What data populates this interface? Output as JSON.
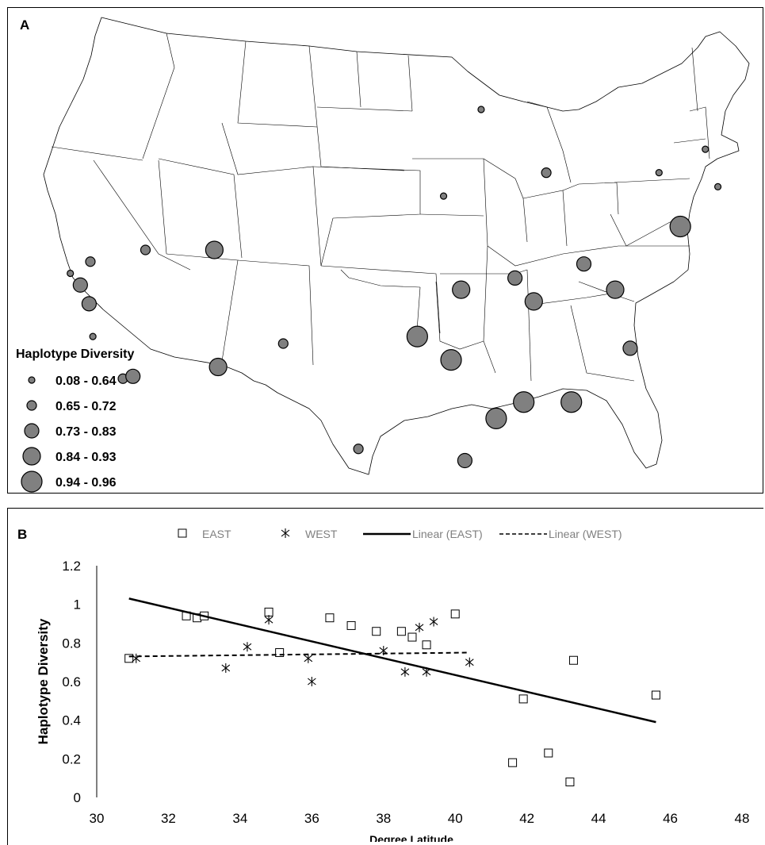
{
  "panel_a": {
    "letter": "A",
    "legend": {
      "title": "Haplotype Diversity",
      "classes": [
        {
          "label": "0.08 - 0.64",
          "size_rank": 1
        },
        {
          "label": "0.65 - 0.72",
          "size_rank": 2
        },
        {
          "label": "0.73 - 0.83",
          "size_rank": 3
        },
        {
          "label": "0.84 - 0.93",
          "size_rank": 4
        },
        {
          "label": "0.94 - 0.96",
          "size_rank": 5
        }
      ]
    },
    "symbol_fill": "#808080"
  },
  "chart_data": [
    {
      "type": "map",
      "map_extent": "contiguous United States",
      "legend_title": "Haplotype Diversity",
      "value_classes": [
        "0.08 - 0.64",
        "0.65 - 0.72",
        "0.73 - 0.83",
        "0.84 - 0.93",
        "0.94 - 0.96"
      ],
      "sites": [
        {
          "location": "northern California",
          "class": 1,
          "lat": 38.5,
          "lon": -123.0
        },
        {
          "location": "northern California",
          "class": 3,
          "lat": 38.0,
          "lon": -122.2
        },
        {
          "location": "northern California",
          "class": 2,
          "lat": 39.0,
          "lon": -121.4
        },
        {
          "location": "central California",
          "class": 3,
          "lat": 37.2,
          "lon": -121.5
        },
        {
          "location": "central California coast",
          "class": 1,
          "lat": 35.8,
          "lon": -121.2
        },
        {
          "location": "southern California",
          "class": 2,
          "lat": 34.0,
          "lon": -118.8
        },
        {
          "location": "southern California",
          "class": 3,
          "lat": 34.1,
          "lon": -118.0
        },
        {
          "location": "Nevada",
          "class": 2,
          "lat": 39.5,
          "lon": -117.0
        },
        {
          "location": "Utah",
          "class": 4,
          "lat": 39.5,
          "lon": -111.5
        },
        {
          "location": "Arizona",
          "class": 4,
          "lat": 34.5,
          "lon": -111.2
        },
        {
          "location": "New Mexico",
          "class": 2,
          "lat": 35.5,
          "lon": -106.0
        },
        {
          "location": "Texas",
          "class": 2,
          "lat": 31.0,
          "lon": -100.0
        },
        {
          "location": "Oklahoma",
          "class": 5,
          "lat": 35.8,
          "lon": -95.3
        },
        {
          "location": "Arkansas",
          "class": 5,
          "lat": 34.8,
          "lon": -92.6
        },
        {
          "location": "Missouri",
          "class": 4,
          "lat": 37.8,
          "lon": -91.8
        },
        {
          "location": "Louisiana",
          "class": 3,
          "lat": 30.5,
          "lon": -91.5
        },
        {
          "location": "Mississippi",
          "class": 5,
          "lat": 32.3,
          "lon": -89.0
        },
        {
          "location": "Alabama",
          "class": 5,
          "lat": 33.0,
          "lon": -86.8
        },
        {
          "location": "Georgia",
          "class": 5,
          "lat": 33.0,
          "lon": -83.0
        },
        {
          "location": "Kentucky",
          "class": 4,
          "lat": 37.3,
          "lon": -86.0
        },
        {
          "location": "Indiana / Kentucky",
          "class": 3,
          "lat": 38.3,
          "lon": -87.5
        },
        {
          "location": "West Virginia",
          "class": 3,
          "lat": 38.9,
          "lon": -82.0
        },
        {
          "location": "Virginia",
          "class": 4,
          "lat": 37.8,
          "lon": -79.5
        },
        {
          "location": "North Carolina",
          "class": 3,
          "lat": 35.3,
          "lon": -78.3
        },
        {
          "location": "New Jersey / New York",
          "class": 5,
          "lat": 40.5,
          "lon": -74.3
        },
        {
          "location": "Michigan",
          "class": 2,
          "lat": 42.8,
          "lon": -85.0
        },
        {
          "location": "Wisconsin",
          "class": 1,
          "lat": 45.5,
          "lon": -90.2
        },
        {
          "location": "Iowa",
          "class": 1,
          "lat": 41.8,
          "lon": -93.2
        },
        {
          "location": "New York",
          "class": 1,
          "lat": 42.8,
          "lon": -76.0
        },
        {
          "location": "Vermont / New Hampshire",
          "class": 1,
          "lat": 43.8,
          "lon": -72.3
        },
        {
          "location": "Massachusetts",
          "class": 1,
          "lat": 42.2,
          "lon": -71.3
        }
      ]
    },
    {
      "type": "scatter",
      "panel_letter": "B",
      "xlabel": "Degree Latitude",
      "ylabel": "Haplotype Diversity",
      "xlim": [
        30,
        48
      ],
      "ylim": [
        0,
        1.2
      ],
      "xticks": [
        "30",
        "32",
        "34",
        "36",
        "38",
        "40",
        "42",
        "44",
        "46",
        "48"
      ],
      "yticks": [
        "0",
        "0.2",
        "0.4",
        "0.6",
        "0.8",
        "1",
        "1.2"
      ],
      "legend_position": "top",
      "series": [
        {
          "name": "EAST",
          "marker": "square",
          "x": [
            30.9,
            32.5,
            32.8,
            33.0,
            34.8,
            35.1,
            36.5,
            37.1,
            37.8,
            38.5,
            38.8,
            39.2,
            40.0,
            41.6,
            41.9,
            42.6,
            43.2,
            43.3,
            45.6
          ],
          "y": [
            0.72,
            0.94,
            0.93,
            0.94,
            0.96,
            0.75,
            0.93,
            0.89,
            0.86,
            0.86,
            0.83,
            0.79,
            0.95,
            0.18,
            0.51,
            0.23,
            0.08,
            0.71,
            0.53
          ]
        },
        {
          "name": "WEST",
          "marker": "asterisk",
          "x": [
            31.1,
            33.6,
            34.2,
            34.8,
            35.9,
            36.0,
            38.0,
            38.6,
            39.0,
            39.2,
            39.4,
            40.4
          ],
          "y": [
            0.72,
            0.67,
            0.78,
            0.92,
            0.72,
            0.6,
            0.76,
            0.65,
            0.88,
            0.65,
            0.91,
            0.7
          ]
        },
        {
          "name": "Linear (EAST)",
          "type": "line",
          "style": "solid",
          "x": [
            30.9,
            45.6
          ],
          "y": [
            1.03,
            0.39
          ]
        },
        {
          "name": "Linear (WEST)",
          "type": "line",
          "style": "dashed",
          "x": [
            30.9,
            40.4
          ],
          "y": [
            0.73,
            0.75
          ]
        }
      ]
    }
  ]
}
